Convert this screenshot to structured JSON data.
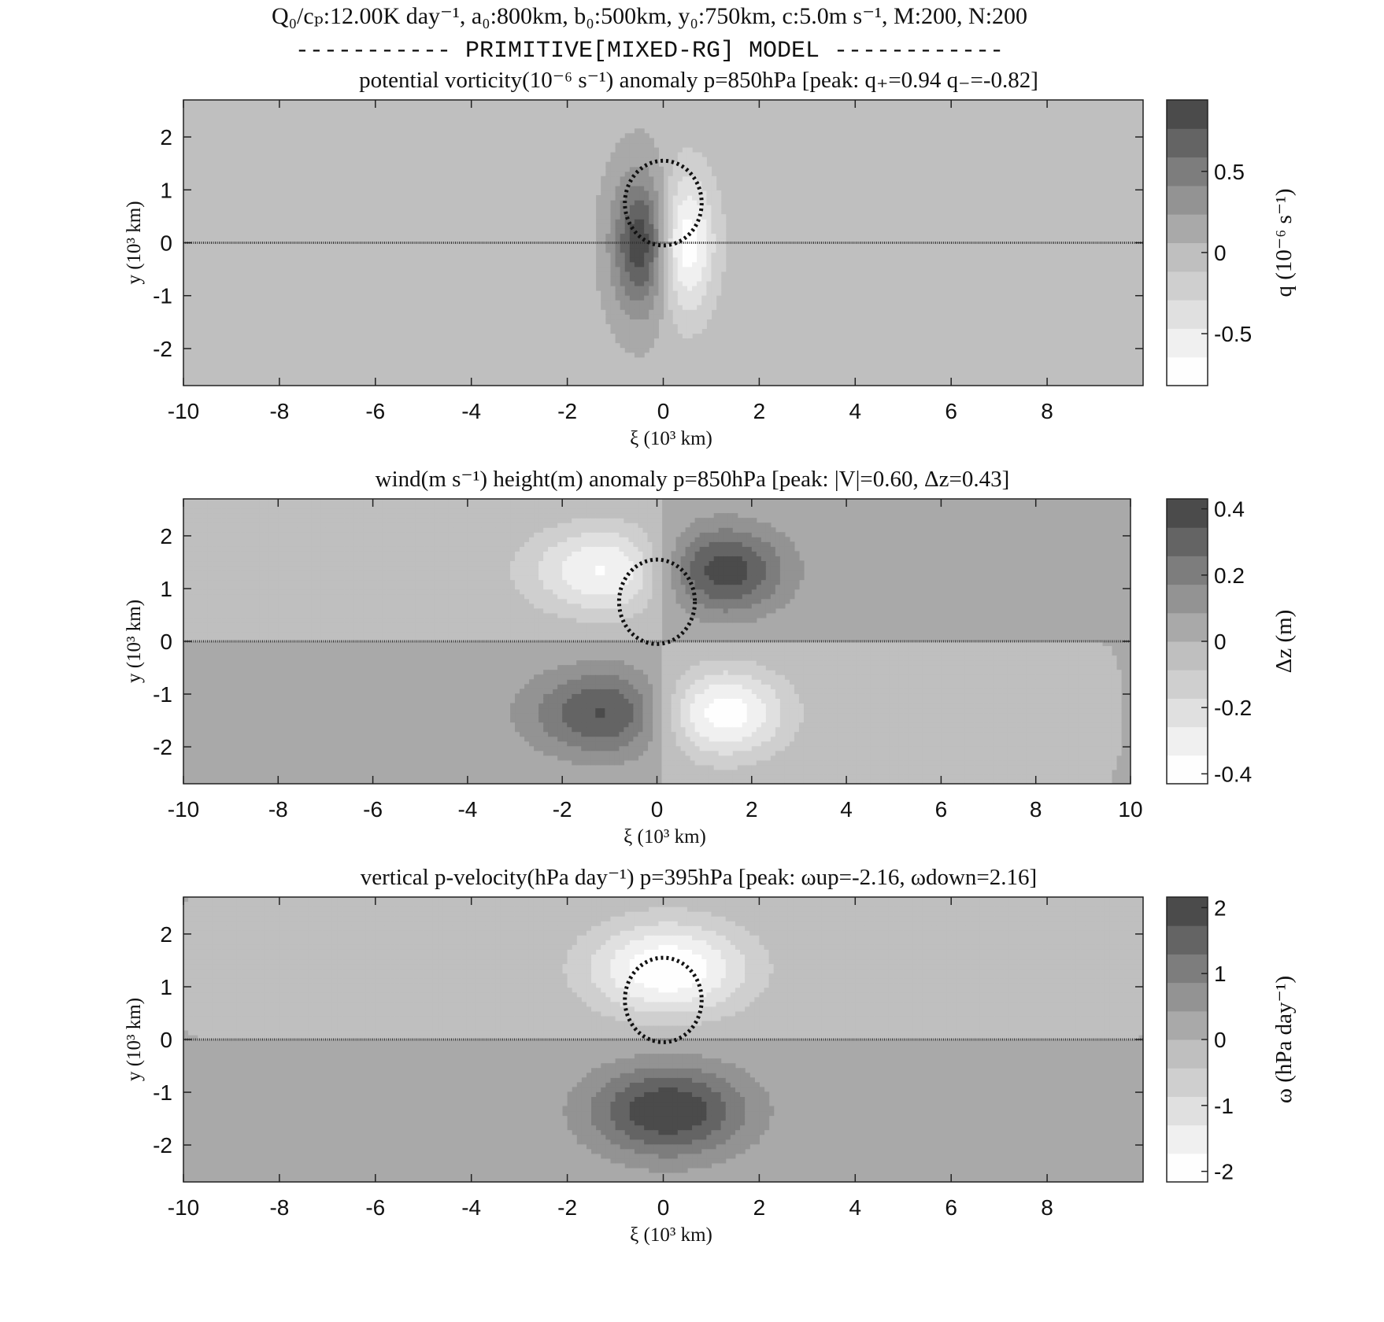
{
  "figure": {
    "header_line1": "Q₀/cₚ:12.00K day⁻¹, a₀:800km, b₀:500km, y₀:750km, c:5.0m s⁻¹, M:200, N:200",
    "header_line2": "----------- PRIMITIVE[MIXED-RG] MODEL ------------"
  },
  "chart_data": [
    {
      "type": "heatmap",
      "title": "potential vorticity(10⁻⁶ s⁻¹) anomaly p=850hPa [peak: q₊=0.94 q₋=-0.82]",
      "xlabel": "ξ (10³ km)",
      "ylabel": "y (10³ km)",
      "colorbar_label": "q (10⁻⁶ s⁻¹)",
      "xlim": [
        -10,
        10
      ],
      "ylim": [
        -2.7,
        2.7
      ],
      "xticks": [
        "-10",
        "-8",
        "-6",
        "-4",
        "-2",
        "0",
        "2",
        "4",
        "6",
        "8"
      ],
      "yticks": [
        "2",
        "1",
        "0",
        "-1",
        "-2"
      ],
      "colorbar_ticks": [
        "0.5",
        "0",
        "-0.5"
      ],
      "colorbar_range": [
        -0.82,
        0.94
      ],
      "peaks": {
        "q_plus": 0.94,
        "q_minus": -0.82
      },
      "positive_center": [
        -0.45,
        0.0
      ],
      "negative_center": [
        0.45,
        0.0
      ],
      "contour_interval": 0.1,
      "background_level": "0",
      "heating_region_center": [
        0.0,
        0.75
      ],
      "heating_region_semi_axes": [
        0.8,
        0.5
      ]
    },
    {
      "type": "heatmap",
      "title": "wind(m s⁻¹) height(m) anomaly p=850hPa [peak: |V|=0.60, Δz=0.43]",
      "xlabel": "ξ (10³ km)",
      "ylabel": "y (10³ km)",
      "colorbar_label": "Δz (m)",
      "xlim": [
        -10,
        10
      ],
      "ylim": [
        -2.7,
        2.7
      ],
      "xticks": [
        "-10",
        "-8",
        "-6",
        "-4",
        "-2",
        "0",
        "2",
        "4",
        "6",
        "8",
        "10"
      ],
      "yticks": [
        "2",
        "1",
        "0",
        "-1",
        "-2"
      ],
      "colorbar_ticks": [
        "0.4",
        "0.2",
        "0",
        "-0.2",
        "-0.4"
      ],
      "colorbar_range": [
        -0.43,
        0.43
      ],
      "peaks": {
        "V": 0.6,
        "dz": 0.43
      },
      "lows": [
        [
          -0.8,
          1.35
        ],
        [
          1.3,
          -1.35
        ]
      ],
      "highs": [
        [
          1.3,
          1.35
        ],
        [
          -0.8,
          -1.35
        ]
      ],
      "contour_interval": 0.1,
      "heating_region_center": [
        0.0,
        0.75
      ],
      "heating_region_semi_axes": [
        0.8,
        0.5
      ]
    },
    {
      "type": "heatmap",
      "title": "vertical p-velocity(hPa day⁻¹) p=395hPa [peak: ωup=-2.16, ωdown=2.16]",
      "xlabel": "ξ (10³ km)",
      "ylabel": "y (10³ km)",
      "colorbar_label": "ω (hPa day⁻¹)",
      "xlim": [
        -10,
        10
      ],
      "ylim": [
        -2.7,
        2.7
      ],
      "xticks": [
        "-10",
        "-8",
        "-6",
        "-4",
        "-2",
        "0",
        "2",
        "4",
        "6",
        "8"
      ],
      "yticks": [
        "2",
        "1",
        "0",
        "-1",
        "-2"
      ],
      "colorbar_ticks": [
        "2",
        "1",
        "0",
        "-1",
        "-2"
      ],
      "colorbar_range": [
        -2.16,
        2.16
      ],
      "peaks": {
        "omega_up": -2.16,
        "omega_down": 2.16
      },
      "up_center": [
        0.1,
        1.35
      ],
      "down_center": [
        0.1,
        -1.35
      ],
      "contour_interval": 0.2,
      "heating_region_center": [
        0.0,
        0.75
      ],
      "heating_region_semi_axes": [
        0.8,
        0.5
      ]
    }
  ]
}
